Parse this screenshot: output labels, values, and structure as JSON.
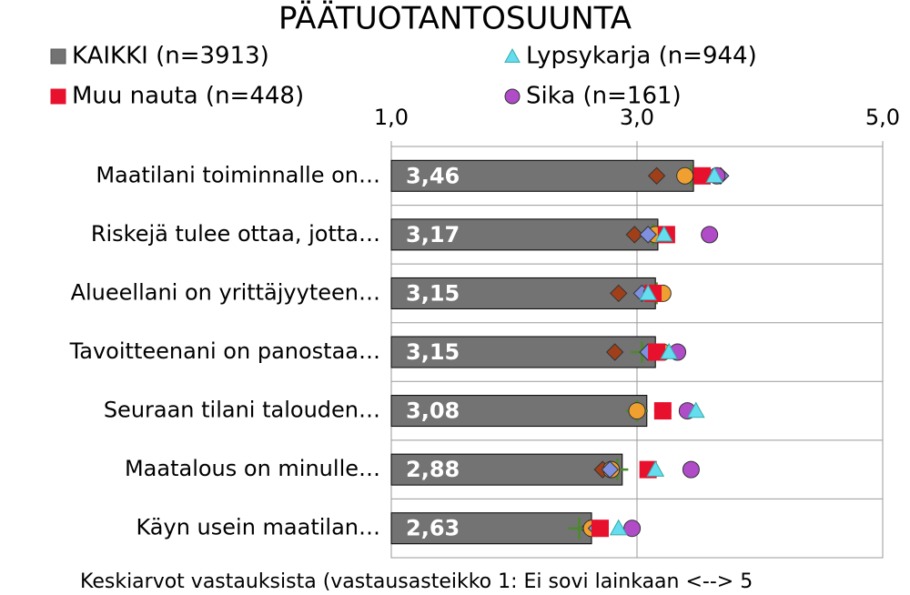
{
  "chart_data": {
    "type": "bar",
    "title": "PÄÄTUOTANTOSUUNTA",
    "x_label": "Keskiarvot vastauksista (vastausasteikko 1: Ei sovi lainkaan <--> 5",
    "categories": [
      "Maatilani toiminnalle on…",
      "Riskejä tulee ottaa, jotta…",
      "Alueellani on yrittäjyyteen…",
      "Tavoitteenani on panostaa…",
      "Seuraan tilani talouden…",
      "Maatalous on minulle…",
      "Käyn usein maatilan…"
    ],
    "xlim": [
      1,
      5
    ],
    "xticks": [
      {
        "value": 1,
        "label": "1,0"
      },
      {
        "value": 3,
        "label": "3,0"
      },
      {
        "value": 5,
        "label": "5,0"
      }
    ],
    "grid": true,
    "series": [
      {
        "name": "KAIKKI (n=3913)",
        "color": "#737373",
        "marker": "bar",
        "values": [
          3.46,
          3.17,
          3.15,
          3.15,
          3.08,
          2.88,
          2.63
        ],
        "value_labels": [
          "3,46",
          "3,17",
          "3,15",
          "3,15",
          "3,08",
          "2,88",
          "2,63"
        ]
      },
      {
        "name": "Lypsykarja (n=944)",
        "color": "#66ddee",
        "marker": "triangle",
        "values": [
          3.63,
          3.22,
          3.09,
          3.26,
          3.48,
          3.15,
          2.85
        ]
      },
      {
        "name": "Muu nauta (n=448)",
        "color": "#e8112d",
        "marker": "square",
        "values": [
          3.53,
          3.24,
          3.13,
          3.16,
          3.21,
          3.09,
          2.7
        ]
      },
      {
        "name": "Sika (n=161)",
        "color": "#b04cc8",
        "marker": "circle",
        "values": [
          3.65,
          3.59,
          3.12,
          3.33,
          3.41,
          3.44,
          2.96
        ]
      },
      {
        "color": "#8090e0",
        "marker": "diamond",
        "values": [
          3.68,
          3.09,
          3.04,
          3.09,
          3.21,
          2.78,
          2.67
        ]
      },
      {
        "color": "#f0a030",
        "marker": "circle",
        "values": [
          3.39,
          3.15,
          3.21,
          3.21,
          3.0,
          2.79,
          2.63
        ]
      },
      {
        "color": "#4a8a2a",
        "marker": "cross",
        "values": [
          3.44,
          3.13,
          3.16,
          3.04,
          3.0,
          2.84,
          2.53
        ]
      },
      {
        "color": "#a0401a",
        "marker": "diamond",
        "values": [
          3.16,
          2.98,
          2.85,
          2.82,
          2.99,
          2.72,
          2.61
        ]
      }
    ]
  }
}
